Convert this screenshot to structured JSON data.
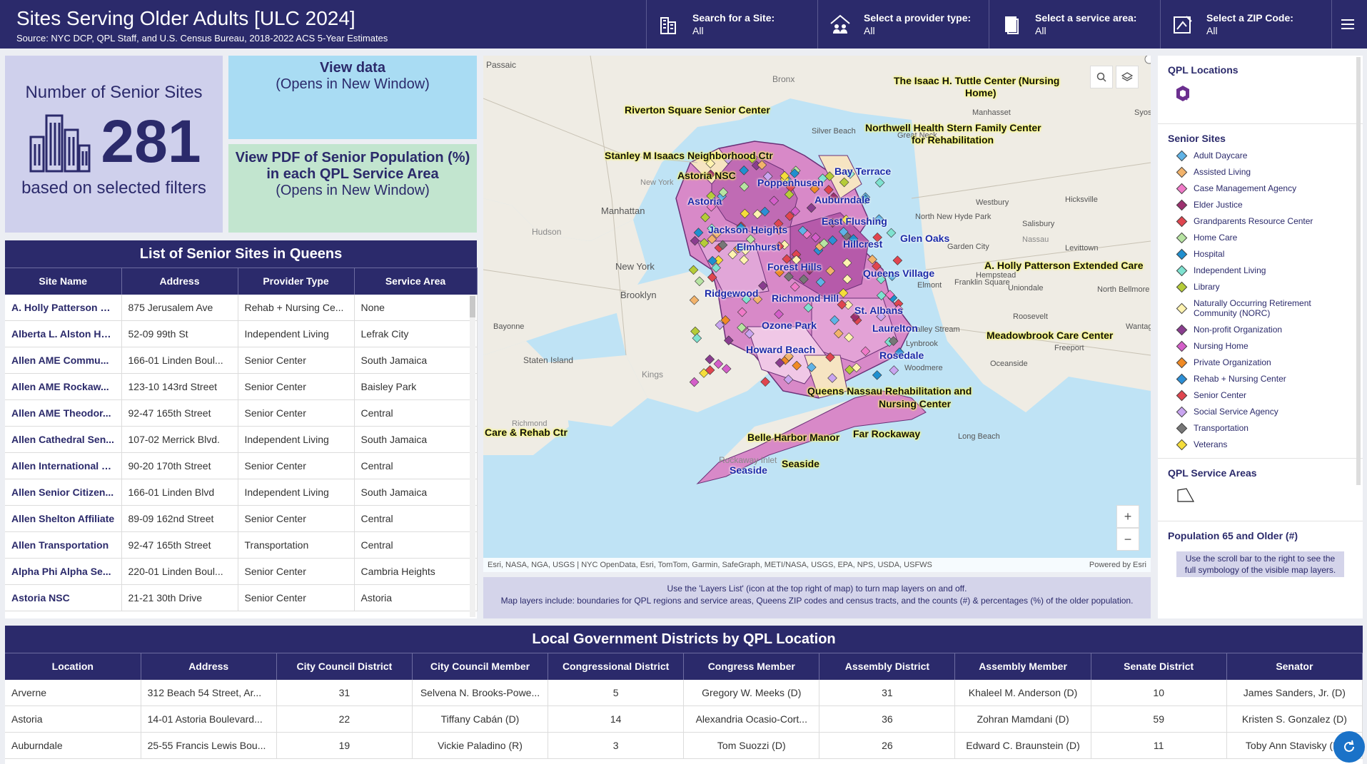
{
  "header": {
    "title": "Sites Serving Older Adults [ULC 2024]",
    "source": "Source: NYC DCP, QPL Staff, and U.S. Census Bureau, 2018-2022 ACS 5-Year Estimates",
    "filters": [
      {
        "label": "Search for a Site:",
        "value": "All",
        "icon": "building-search-icon"
      },
      {
        "label": "Select a provider type:",
        "value": "All",
        "icon": "house-people-icon"
      },
      {
        "label": "Select a service area:",
        "value": "All",
        "icon": "document-icon"
      },
      {
        "label": "Select a ZIP Code:",
        "value": "All",
        "icon": "map-edit-icon"
      }
    ]
  },
  "kpi": {
    "title": "Number of Senior Sites",
    "value": "281",
    "subtitle": "based on selected filters"
  },
  "view_data": {
    "title": "View data",
    "subtitle": "(Opens in New Window)"
  },
  "view_pdf": {
    "title": "View PDF of Senior Population (%) in each QPL Service Area",
    "subtitle": "(Opens in New Window)"
  },
  "sites_table": {
    "title": "List of Senior Sites in Queens",
    "columns": [
      "Site Name",
      "Address",
      "Provider Type",
      "Service Area"
    ],
    "rows": [
      [
        "A. Holly Patterson E...",
        "875 Jerusalem Ave",
        "Rehab + Nursing Ce...",
        "None"
      ],
      [
        "Alberta L. Alston Ho...",
        "52-09 99th St",
        "Independent Living",
        "Lefrak City"
      ],
      [
        "Allen AME Commu...",
        "166-01 Linden Boul...",
        "Senior Center",
        "South Jamaica"
      ],
      [
        "Allen AME Rockaw...",
        "123-10 143rd Street",
        "Senior Center",
        "Baisley Park"
      ],
      [
        "Allen AME Theodor...",
        "92-47 165th Street",
        "Senior Center",
        "Central"
      ],
      [
        "Allen Cathedral Sen...",
        "107-02 Merrick Blvd.",
        "Independent Living",
        "South Jamaica"
      ],
      [
        "Allen International T...",
        "90-20 170th Street",
        "Senior Center",
        "Central"
      ],
      [
        "Allen Senior Citizen...",
        "166-01 Linden Blvd",
        "Independent Living",
        "South Jamaica"
      ],
      [
        "Allen Shelton Affiliate",
        "89-09 162nd Street",
        "Senior Center",
        "Central"
      ],
      [
        "Allen Transportation",
        "92-47 165th Street",
        "Transportation",
        "Central"
      ],
      [
        "Alpha Phi Alpha Se...",
        "220-01 Linden Boul...",
        "Senior Center",
        "Cambria Heights"
      ],
      [
        "Astoria NSC",
        "21-21 30th Drive",
        "Senior Center",
        "Astoria"
      ]
    ]
  },
  "map": {
    "attribution": "Esri, NASA, NGA, USGS | NYC OpenData, Esri, TomTom, Garmin, SafeGraph, METI/NASA, USGS, EPA, NPS, USDA, USFWS",
    "powered": "Powered by Esri",
    "zoom_in": "+",
    "zoom_out": "−",
    "note_line1": "Use the 'Layers List' (icon at the top right of map) to turn map layers on and off.",
    "note_line2": "Map layers include: boundaries for QPL regions and service areas, Queens ZIP codes and census tracts, and the counts (#) & percentages (%) of the older population.",
    "site_labels": [
      "The Isaac H. Tuttle Center (Nursing",
      "Home)",
      "Riverton Square Senior Center",
      "Northwell Health Stern Family Center",
      "for Rehabilitation",
      "Stanley M Isaacs Neighborhood Ctr",
      "Astoria NSC",
      "A. Holly Patterson Extended Care",
      "Meadowbrook Care Center",
      "Queens Nassau Rehabilitation and",
      "Nursing Center",
      "Care & Rehab Ctr",
      "Belle Harbor Manor",
      "Far Rockaway",
      "Seaside"
    ],
    "area_labels": [
      "Poppenhusen",
      "Bay Terrace",
      "Astoria",
      "Auburndale",
      "East Flushing",
      "Jackson Heights",
      "Glen Oaks",
      "Elmhurst",
      "Hillcrest",
      "Forest Hills",
      "Queens Village",
      "Ridgewood",
      "Richmond Hill",
      "St. Albans",
      "Ozone Park",
      "Laurelton",
      "Howard Beach",
      "Rosedale",
      "Seaside"
    ],
    "place_labels": [
      "Passaic",
      "Bronx",
      "Silver Beach",
      "Great Neck",
      "New York",
      "Manhattan",
      "Hudson",
      "New York",
      "Brooklyn",
      "Bayonne",
      "Staten Island",
      "Kings",
      "Westbury",
      "Hicksville",
      "Salisbury",
      "Garden City",
      "Nassau",
      "Levittown",
      "Hempstead",
      "Uniondale",
      "Roosevelt",
      "Oceanside",
      "Freeport",
      "Long Beach",
      "Woodmere",
      "Lynbrook",
      "Valley Stream",
      "Elmont",
      "Franklin Square",
      "North New Hyde Park",
      "North Bellmore",
      "Wantagh",
      "Rockaway Inlet",
      "Richmond",
      "Manhasset",
      "Syosset"
    ]
  },
  "legend": {
    "qpl_locations_title": "QPL Locations",
    "senior_sites_title": "Senior Sites",
    "items": [
      {
        "label": "Adult Daycare",
        "color": "#5fb3e6"
      },
      {
        "label": "Assisted Living",
        "color": "#f2b36b"
      },
      {
        "label": "Case Management Agency",
        "color": "#f07ac8"
      },
      {
        "label": "Elder Justice",
        "color": "#9c2f6e"
      },
      {
        "label": "Grandparents Resource Center",
        "color": "#e0454f"
      },
      {
        "label": "Home Care",
        "color": "#b7e4a2"
      },
      {
        "label": "Hospital",
        "color": "#1f8fcf"
      },
      {
        "label": "Independent Living",
        "color": "#7ee2d0"
      },
      {
        "label": "Library",
        "color": "#b5cc38"
      },
      {
        "label": "Naturally Occurring Retirement Community (NORC)",
        "color": "#fff3b0"
      },
      {
        "label": "Non-profit Organization",
        "color": "#8a3d8f"
      },
      {
        "label": "Nursing Home",
        "color": "#d45ec9"
      },
      {
        "label": "Private Organization",
        "color": "#f08a24"
      },
      {
        "label": "Rehab + Nursing Center",
        "color": "#2c8fd6"
      },
      {
        "label": "Senior Center",
        "color": "#e0454f"
      },
      {
        "label": "Social Service Agency",
        "color": "#c9a5f0"
      },
      {
        "label": "Transportation",
        "color": "#777777"
      },
      {
        "label": "Veterans",
        "color": "#f5dd3a"
      }
    ],
    "service_areas_title": "QPL Service Areas",
    "population_title": "Population 65 and Older (#)",
    "population_note": "Use the scroll bar to the right to see the full symbology of the visible map layers."
  },
  "districts_table": {
    "title": "Local Government Districts by QPL Location",
    "columns": [
      "Location",
      "Address",
      "City Council District",
      "City Council Member",
      "Congressional District",
      "Congress Member",
      "Assembly District",
      "Assembly Member",
      "Senate District",
      "Senator"
    ],
    "rows": [
      [
        "Arverne",
        "312 Beach 54 Street, Ar...",
        "31",
        "Selvena N. Brooks-Powe...",
        "5",
        "Gregory W. Meeks (D)",
        "31",
        "Khaleel M. Anderson (D)",
        "10",
        "James Sanders, Jr. (D)"
      ],
      [
        "Astoria",
        "14-01 Astoria Boulevard...",
        "22",
        "Tiffany Cabán (D)",
        "14",
        "Alexandria Ocasio-Cort...",
        "36",
        "Zohran Mamdani (D)",
        "59",
        "Kristen S. Gonzalez (D)"
      ],
      [
        "Auburndale",
        "25-55 Francis Lewis Bou...",
        "19",
        "Vickie Paladino (R)",
        "3",
        "Tom Suozzi (D)",
        "26",
        "Edward C. Braunstein (D)",
        "11",
        "Toby Ann Stavisky (D)"
      ]
    ]
  }
}
